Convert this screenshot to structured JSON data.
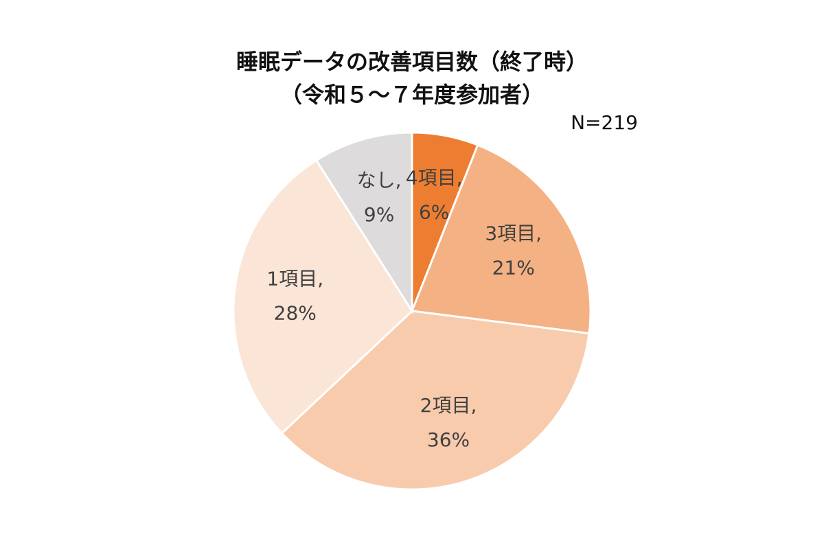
{
  "chart_data": {
    "type": "pie",
    "title": "睡眠データの改善項目数（終了時）",
    "subtitle": "（令和５～７年度参加者）",
    "annotation": "N=219",
    "categories": [
      "4項目,",
      "3項目,",
      "2項目,",
      "1項目,",
      "なし,"
    ],
    "values": [
      6,
      21,
      36,
      28,
      9
    ],
    "value_labels": [
      "6%",
      "21%",
      "36%",
      "28%",
      "9%"
    ],
    "colors": [
      "#ed7d31",
      "#f4b183",
      "#f8cbad",
      "#fbe5d6",
      "#dedbdc"
    ]
  }
}
